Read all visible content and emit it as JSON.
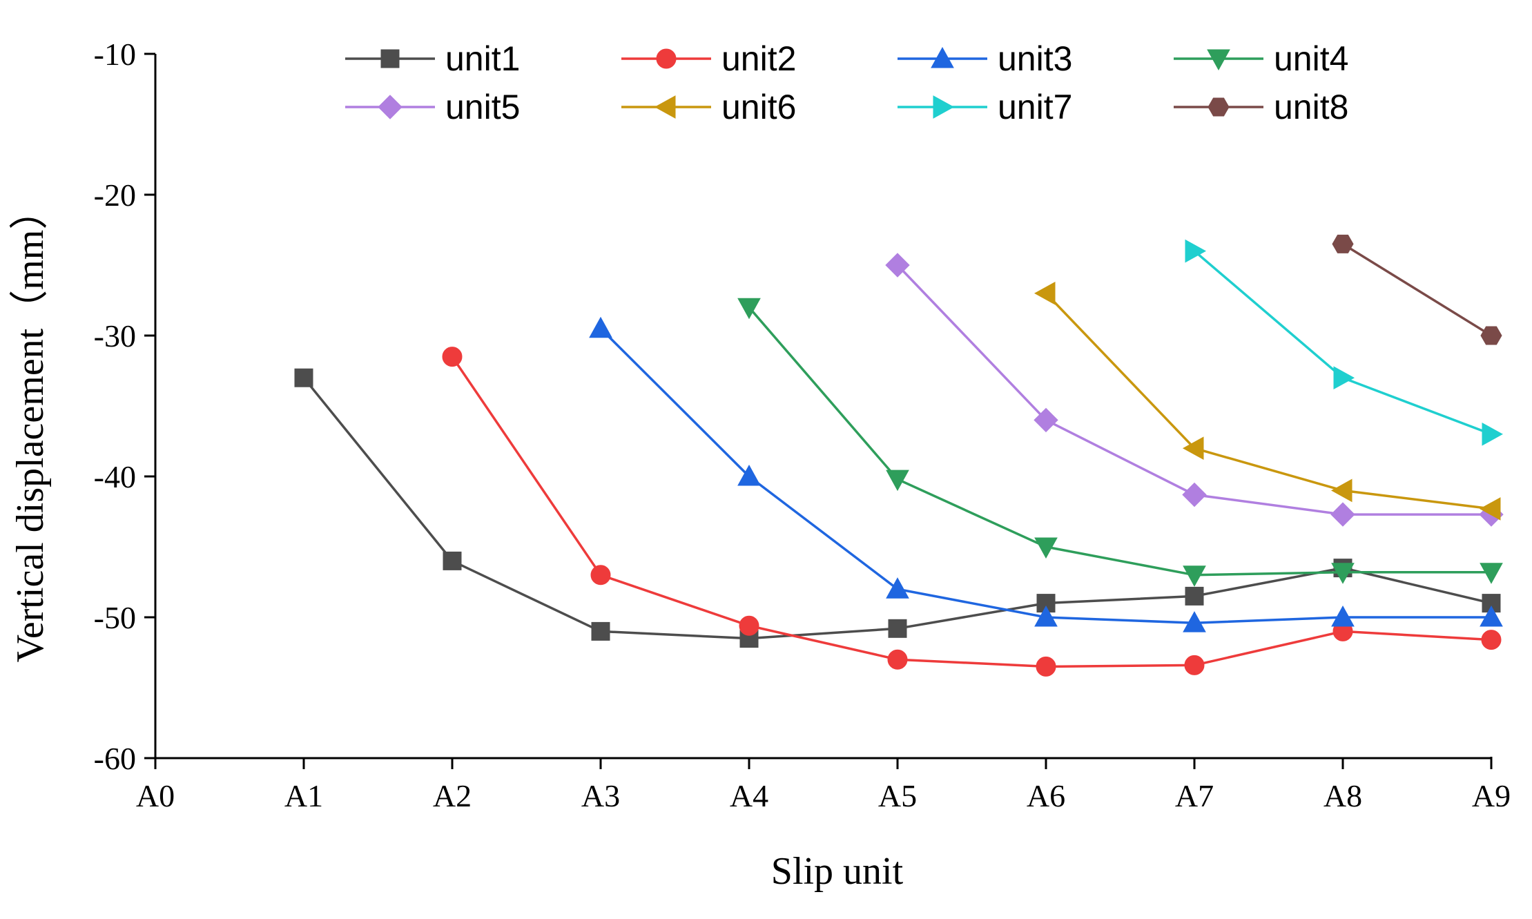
{
  "chart_data": {
    "type": "line",
    "title": "",
    "xlabel": "Slip unit",
    "ylabel": "Vertical displacement（mm）",
    "categories": [
      "A0",
      "A1",
      "A2",
      "A3",
      "A4",
      "A5",
      "A6",
      "A7",
      "A8",
      "A9"
    ],
    "ylim": [
      -60,
      -10
    ],
    "yticks": [
      -10,
      -20,
      -30,
      -40,
      -50,
      -60
    ],
    "legend_position": "top",
    "series": [
      {
        "name": "unit1",
        "color": "#4d4d4d",
        "marker": "square",
        "values": [
          null,
          -33,
          -46,
          -51,
          -51.5,
          -50.8,
          -49,
          -48.5,
          -46.5,
          -49
        ]
      },
      {
        "name": "unit2",
        "color": "#ee3b3b",
        "marker": "circle",
        "values": [
          null,
          null,
          -31.5,
          -47,
          -50.6,
          -53,
          -53.5,
          -53.4,
          -51,
          -51.6
        ]
      },
      {
        "name": "unit3",
        "color": "#1f66e0",
        "marker": "triangle-up",
        "values": [
          null,
          null,
          null,
          -29.5,
          -40,
          -48,
          -50,
          -50.4,
          -50,
          -50
        ]
      },
      {
        "name": "unit4",
        "color": "#2e9e5b",
        "marker": "triangle-down",
        "values": [
          null,
          null,
          null,
          null,
          -28,
          -40.2,
          -45,
          -47,
          -46.8,
          -46.8
        ]
      },
      {
        "name": "unit5",
        "color": "#b07fe0",
        "marker": "diamond",
        "values": [
          null,
          null,
          null,
          null,
          null,
          -25,
          -36,
          -41.3,
          -42.7,
          -42.7
        ]
      },
      {
        "name": "unit6",
        "color": "#c9970e",
        "marker": "triangle-left",
        "values": [
          null,
          null,
          null,
          null,
          null,
          null,
          -27,
          -38,
          -41,
          -42.3
        ]
      },
      {
        "name": "unit7",
        "color": "#1fcfcf",
        "marker": "triangle-right",
        "values": [
          null,
          null,
          null,
          null,
          null,
          null,
          null,
          -24,
          -33,
          -37
        ]
      },
      {
        "name": "unit8",
        "color": "#7a4a48",
        "marker": "hexagon",
        "values": [
          null,
          null,
          null,
          null,
          null,
          null,
          null,
          null,
          -23.5,
          -30
        ]
      }
    ]
  }
}
